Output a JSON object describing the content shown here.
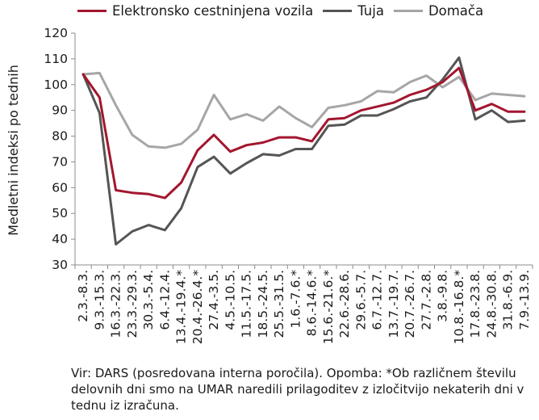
{
  "chart_data": {
    "type": "line",
    "title": "",
    "ylabel": "Medletni indeksi po tednih",
    "xlabel": "",
    "ylim": [
      30,
      120
    ],
    "yticks": [
      30,
      40,
      50,
      60,
      70,
      80,
      90,
      100,
      110,
      120
    ],
    "grid": false,
    "legend_position": "top",
    "categories": [
      "2.3.-8.3.",
      "9.3.-15.3.",
      "16.3.-22.3.",
      "23.3.-29.3.",
      "30.3.-5.4.",
      "6.4.-12.4.",
      "13.4.-19.4.*",
      "20.4.-26.4.*",
      "27.4.-3.5.",
      "4.5.-10.5.",
      "11.5.-17.5.",
      "18.5.-24.5.",
      "25.5.-31.5.",
      "1.6.-7.6.*",
      "8.6.-14.6.*",
      "15.6.-21.6.*",
      "22.6.-28.6.",
      "29.6.-5.7.",
      "6.7.-12.7.",
      "13.7.-19.7.",
      "20.7.-26.7.",
      "27.7.-2.8.",
      "3.8.-9.8.",
      "10.8.-16.8.*",
      "17.8.-23.8.",
      "24.8.-30.8.",
      "31.8.-6.9.",
      "7.9.-13.9."
    ],
    "series": [
      {
        "name": "Elektronsko cestninjena vozila",
        "color": "#a3162e",
        "values": [
          104,
          95,
          59,
          58,
          57.5,
          56,
          62,
          74.5,
          80.5,
          74,
          76.5,
          77.5,
          79.5,
          79.5,
          78,
          86.5,
          87,
          90,
          91.5,
          93,
          96,
          98,
          101,
          106.5,
          90,
          92.5,
          89.5,
          89.5
        ]
      },
      {
        "name": "Tuja",
        "color": "#555555",
        "values": [
          104,
          89,
          38,
          43,
          45.5,
          43.5,
          52,
          68,
          72,
          65.5,
          69.5,
          73,
          72.5,
          75,
          75,
          84,
          84.5,
          88,
          88,
          90.5,
          93.5,
          95,
          102,
          110.5,
          86.5,
          90,
          85.5,
          86
        ]
      },
      {
        "name": "Domača",
        "color": "#a6a6a6",
        "values": [
          104,
          104.5,
          92,
          80.5,
          76,
          75.5,
          77,
          82.5,
          96,
          86.5,
          88.5,
          86,
          91.5,
          87,
          83.5,
          91,
          92,
          93.5,
          97.5,
          97,
          101,
          103.5,
          99,
          103,
          94,
          96.5,
          96,
          95.5
        ]
      }
    ]
  },
  "source_note": "Vir: DARS (posredovana interna poročila). Opomba: *Ob različnem številu delovnih dni smo na UMAR naredili prilagoditev z izločitvijo nekaterih dni v tednu iz izračuna."
}
